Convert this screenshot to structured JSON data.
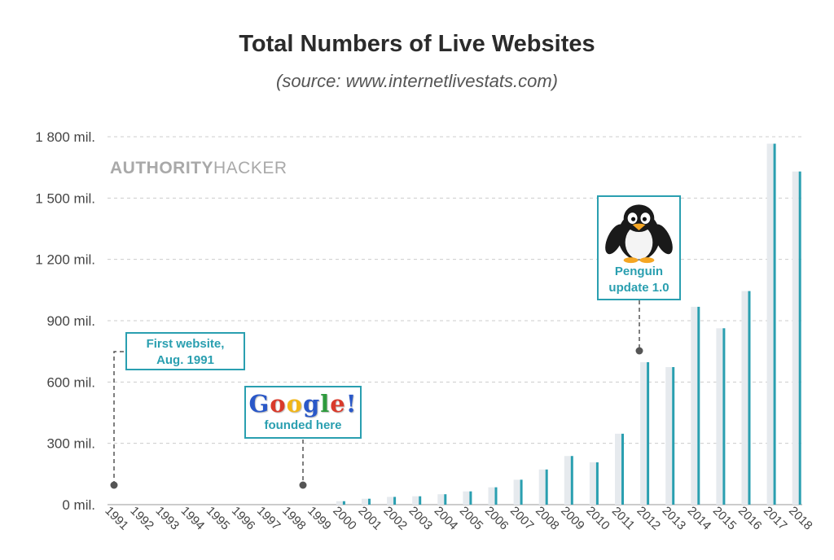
{
  "header": {
    "title": "Total Numbers of Live Websites",
    "subtitle": "(source: www.internetlivestats.com)"
  },
  "brand": {
    "strong": "AUTHORITY",
    "light": "HACKER"
  },
  "annotations": {
    "first_website": [
      "First website,",
      "Aug. 1991"
    ],
    "google": {
      "logo": "Google!",
      "caption": "founded here"
    },
    "penguin": [
      "Penguin",
      "update 1.0"
    ]
  },
  "colors": {
    "bar": "#2a9fb0",
    "bar_shadow": "#e6eaee",
    "grid": "#cccccc",
    "axis_text": "#444444",
    "google_letters": [
      "#2a58c8",
      "#d93a2b",
      "#f2b618",
      "#2a58c8",
      "#2e9a3d",
      "#d93a2b",
      "#2a58c8"
    ]
  },
  "chart_data": {
    "type": "bar",
    "title": "Total Numbers of Live Websites",
    "subtitle": "(source: www.internetlivestats.com)",
    "xlabel": "",
    "ylabel": "",
    "ylim": [
      0,
      1800
    ],
    "grid": true,
    "y_ticks": [
      0,
      300,
      600,
      900,
      1200,
      1500,
      1800
    ],
    "y_tick_labels": [
      "0 mil.",
      "300 mil.",
      "600 mil.",
      "900 mil.",
      "1 200 mil.",
      "1 500 mil.",
      "1 800 mil."
    ],
    "categories": [
      "1991",
      "1992",
      "1993",
      "1994",
      "1995",
      "1996",
      "1997",
      "1998",
      "1999",
      "2000",
      "2001",
      "2002",
      "2003",
      "2004",
      "2005",
      "2006",
      "2007",
      "2008",
      "2009",
      "2010",
      "2011",
      "2012",
      "2013",
      "2014",
      "2015",
      "2016",
      "2017",
      "2018"
    ],
    "values": [
      0,
      0,
      0,
      0,
      0,
      0,
      0,
      0,
      0,
      17,
      29,
      38,
      41,
      51,
      65,
      85,
      122,
      172,
      238,
      207,
      347,
      697,
      673,
      968,
      863,
      1045,
      1766,
      1630
    ],
    "units": "mil.",
    "annotations": [
      {
        "label": "First website, Aug. 1991",
        "category": "1991"
      },
      {
        "label": "Google! founded here",
        "category": "1998"
      },
      {
        "label": "Penguin update 1.0",
        "category": "2012"
      }
    ]
  }
}
